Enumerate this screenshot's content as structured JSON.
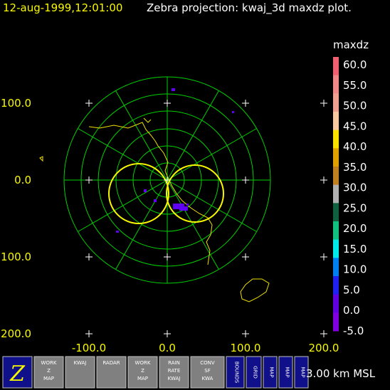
{
  "header": {
    "time": "12-aug-1999,12:01:00",
    "title": "Zebra projection: kwaj_3d maxdz plot."
  },
  "plot": {
    "y_labels": [
      "100.0",
      "0.0",
      "100.0",
      "200.0"
    ],
    "x_labels": [
      "-100.0",
      "0.0",
      "100.0",
      "200.0"
    ]
  },
  "colorbar": {
    "field": "maxdz",
    "labels": [
      "60.0",
      "55.0",
      "50.0",
      "45.0",
      "40.0",
      "35.0",
      "30.0",
      "25.0",
      "20.0",
      "15.0",
      "10.0",
      "5.0",
      "0.0",
      "-5.0"
    ],
    "colors": [
      "#f06070",
      "#f08888",
      "#f0a090",
      "#f8c8a0",
      "#f8e000",
      "#e0a000",
      "#c08020",
      "#b0b0b0",
      "#106040",
      "#10c080",
      "#00e8e8",
      "#0080f0",
      "#2020f0",
      "#6000e0",
      "#8000e0"
    ]
  },
  "toolbar": {
    "icons": [
      {
        "label": "Z"
      },
      {
        "label": "WORK Z MAP"
      },
      {
        "label": "KWAJ"
      },
      {
        "label": "RADAR"
      },
      {
        "label": "WORK Z MAP"
      },
      {
        "label": "RAIN RATE KWAJ"
      },
      {
        "label": "CONV SF KWA"
      },
      {
        "label": "BOUNDS"
      },
      {
        "label": "GRID"
      },
      {
        "label": "MAP"
      },
      {
        "label": "MAP"
      },
      {
        "label": "MAP"
      }
    ],
    "status": "3.00 km MSL"
  }
}
